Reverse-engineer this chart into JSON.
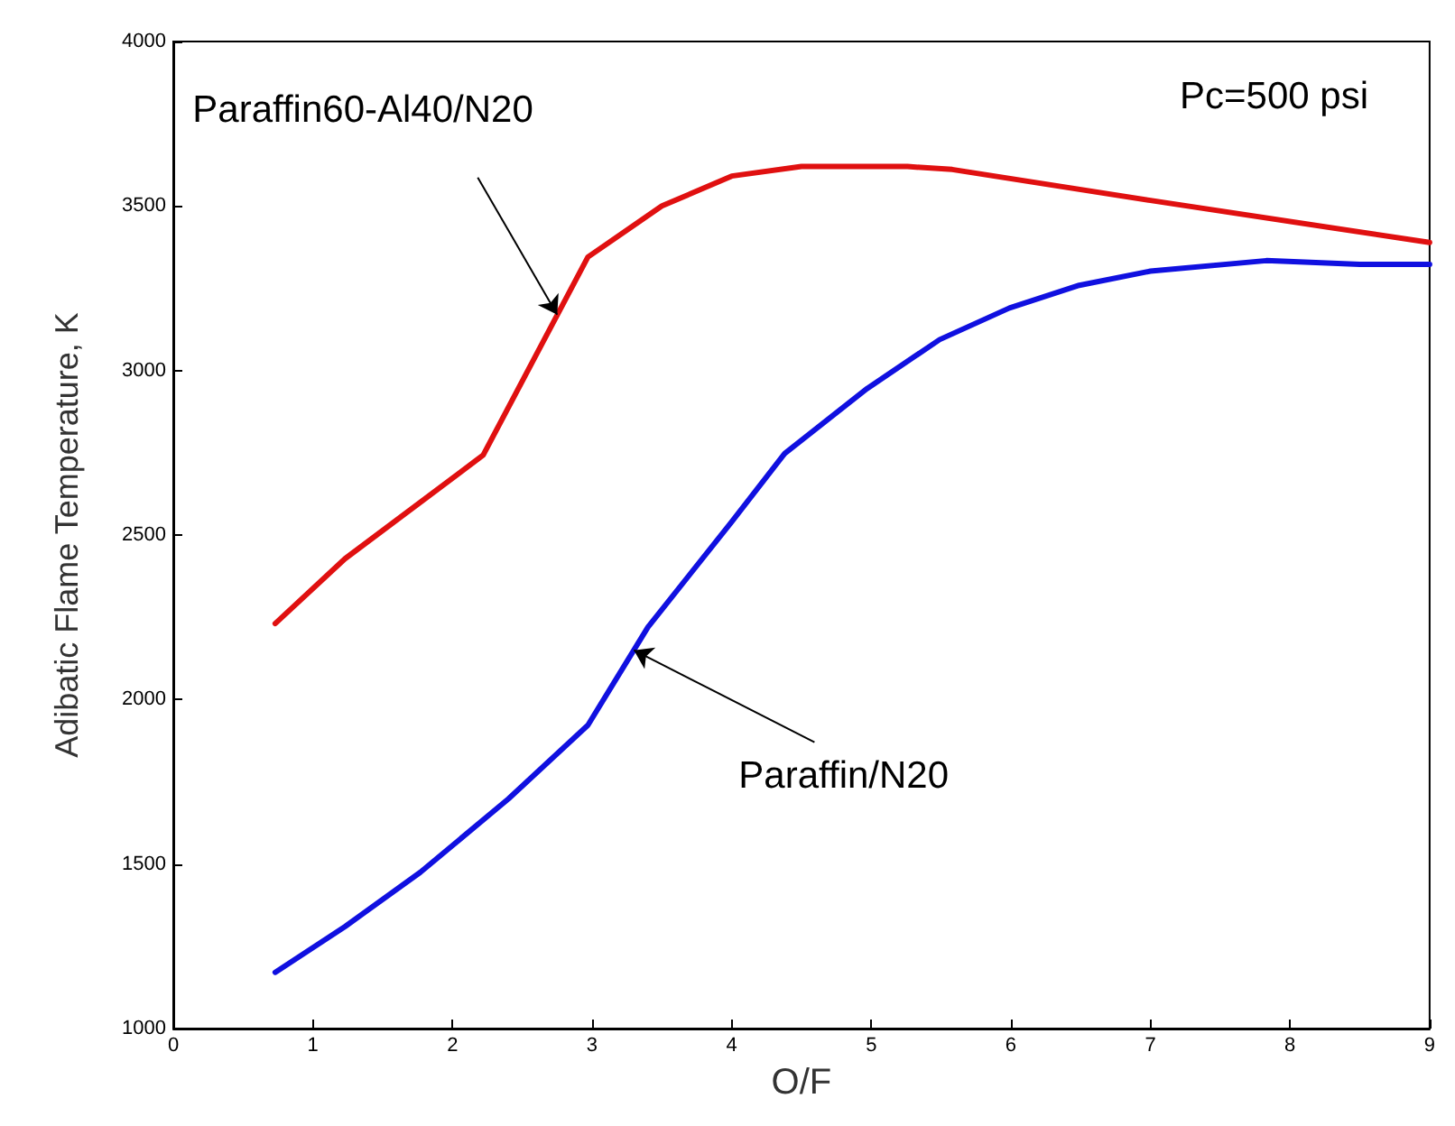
{
  "chart_data": {
    "type": "line",
    "xlabel": "O/F",
    "ylabel": "Adibatic Flame Temperature, K",
    "xlim": [
      0,
      9
    ],
    "xticks": [
      0,
      1,
      2,
      3,
      4,
      5,
      6,
      7,
      8,
      9
    ],
    "ylim": [
      1000,
      4000
    ],
    "yticks": [
      1000,
      1500,
      2000,
      2500,
      3000,
      3500,
      4000
    ],
    "grid": false,
    "marker": "none",
    "line_style": "solid",
    "series": [
      {
        "color": "#e01010",
        "x": [
          0.73,
          1.23,
          2.22,
          2.97,
          3.5,
          4.0,
          4.5,
          5.26,
          5.58,
          7.0,
          9.0
        ],
        "values": [
          2231,
          2428,
          2743,
          3345,
          3500,
          3591,
          3620,
          3620,
          3611,
          3517,
          3389
        ]
      },
      {
        "color": "#1010e0",
        "x": [
          0.73,
          1.23,
          1.77,
          2.4,
          2.97,
          3.4,
          4.0,
          4.38,
          4.97,
          5.49,
          5.99,
          6.49,
          7.0,
          7.83,
          8.5,
          9.0
        ],
        "values": [
          1171,
          1310,
          1475,
          1698,
          1922,
          2220,
          2540,
          2748,
          2945,
          3094,
          3190,
          3259,
          3302,
          3334,
          3323,
          3323
        ]
      }
    ],
    "annotations": [
      {
        "text": "Paraffin60-Al40/N20",
        "x": 2.75,
        "y": 3170
      },
      {
        "text": "Paraffin/N20",
        "x": 3.3,
        "y": 2150
      },
      "Pc=500 psi"
    ]
  }
}
